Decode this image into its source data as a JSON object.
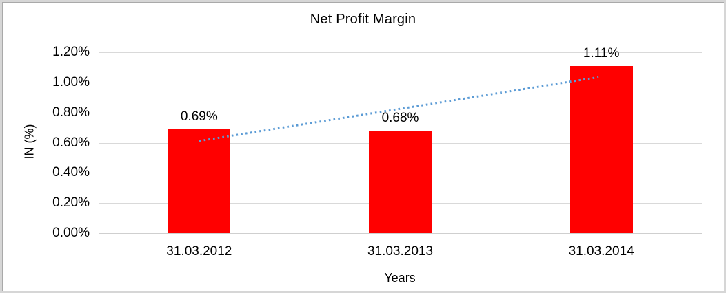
{
  "chart_data": {
    "type": "bar",
    "title": "Net Profit Margin",
    "xlabel": "Years",
    "ylabel": "IN (%)",
    "categories": [
      "31.03.2012",
      "31.03.2013",
      "31.03.2014"
    ],
    "values": [
      0.69,
      0.68,
      1.11
    ],
    "data_labels": [
      "0.69%",
      "0.68%",
      "1.11%"
    ],
    "ylim": [
      0,
      1.2
    ],
    "yticks": [
      {
        "value": 0.0,
        "label": "0.00%"
      },
      {
        "value": 0.2,
        "label": "0.20%"
      },
      {
        "value": 0.4,
        "label": "0.40%"
      },
      {
        "value": 0.6,
        "label": "0.60%"
      },
      {
        "value": 0.8,
        "label": "0.80%"
      },
      {
        "value": 1.0,
        "label": "1.00%"
      },
      {
        "value": 1.2,
        "label": "1.20%"
      }
    ],
    "grid": true,
    "legend": "none",
    "bar_color": "#FF0000",
    "gridline_color": "#D9D9D9",
    "axis_line_color": "#CFCFCF",
    "text_color": "#000000",
    "trendline": {
      "style": "dotted",
      "color": "#5B9BD5",
      "x1": 0,
      "y1": 0.612,
      "x2": 2,
      "y2": 1.035
    }
  }
}
